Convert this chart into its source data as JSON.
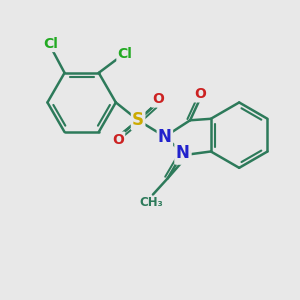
{
  "bg_color": "#e8e8e8",
  "atom_colors": {
    "C": "#2d7a5a",
    "Cl": "#22aa22",
    "S": "#ccaa00",
    "N": "#2222cc",
    "O": "#cc2222",
    "H": "#2d7a5a"
  },
  "bond_color": "#2d7a5a",
  "bond_width": 1.8,
  "font_size_atom": 11,
  "bg": "#e8e8e8"
}
